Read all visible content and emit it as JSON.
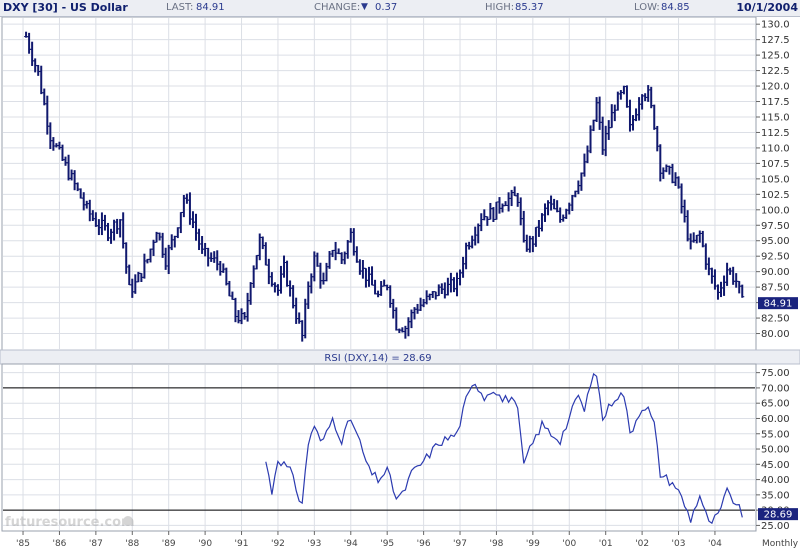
{
  "header": {
    "title": "DXY [30] - US Dollar",
    "last_label": "LAST:",
    "last_value": "84.91",
    "change_label": "CHANGE:",
    "change_value": "0.37",
    "high_label": "HIGH:",
    "high_value": "85.37",
    "low_label": "LOW:",
    "low_value": "84.85",
    "date": "10/1/2004"
  },
  "colors": {
    "price": "#10186e",
    "rsi": "#2c3bb0",
    "grid": "#dcdfe6",
    "badge": "#1a237e",
    "reference_line": "#000000"
  },
  "watermark": "futuresource.com",
  "frequency_label": "Monthly",
  "chart_data": [
    {
      "type": "ohlc",
      "series": [
        {
          "name": "DXY [30] - US Dollar",
          "last": 84.91
        }
      ],
      "ylim": [
        77.5,
        131
      ],
      "yticks": [
        80.0,
        82.5,
        85.0,
        87.5,
        90.0,
        92.5,
        95.0,
        97.5,
        100.0,
        102.5,
        105.0,
        107.5,
        110.0,
        112.5,
        115.0,
        117.5,
        120.0,
        122.5,
        125.0,
        127.5,
        130.0
      ],
      "ytick_labels": [
        "80.00",
        "82.50",
        "85.00",
        "87.50",
        "90.00",
        "92.50",
        "95.00",
        "97.50",
        "100.0",
        "102.5",
        "105.0",
        "107.5",
        "110.0",
        "112.5",
        "115.0",
        "117.5",
        "120.0",
        "122.5",
        "125.0",
        "127.5",
        "130.0"
      ],
      "last_value_label": "84.91",
      "close_anchors": [
        [
          "1985-02-01",
          128.0
        ],
        [
          "1985-06-01",
          122.0
        ],
        [
          "1985-10-01",
          112.0
        ],
        [
          "1986-02-01",
          108.0
        ],
        [
          "1986-06-01",
          104.0
        ],
        [
          "1986-10-01",
          100.0
        ],
        [
          "1987-01-01",
          98.0
        ],
        [
          "1987-05-01",
          96.5
        ],
        [
          "1987-09-01",
          98.5
        ],
        [
          "1987-12-01",
          87.0
        ],
        [
          "1988-02-01",
          88.0
        ],
        [
          "1988-06-01",
          92.0
        ],
        [
          "1988-09-01",
          97.0
        ],
        [
          "1988-12-01",
          92.0
        ],
        [
          "1989-03-01",
          96.0
        ],
        [
          "1989-06-01",
          102.0
        ],
        [
          "1989-09-01",
          98.0
        ],
        [
          "1989-12-01",
          93.0
        ],
        [
          "1990-03-01",
          92.0
        ],
        [
          "1990-06-01",
          91.0
        ],
        [
          "1990-09-01",
          86.0
        ],
        [
          "1990-11-01",
          83.0
        ],
        [
          "1991-02-01",
          82.0
        ],
        [
          "1991-04-01",
          89.0
        ],
        [
          "1991-07-01",
          95.0
        ],
        [
          "1991-10-01",
          90.0
        ],
        [
          "1992-01-01",
          87.0
        ],
        [
          "1992-03-01",
          90.5
        ],
        [
          "1992-06-01",
          85.0
        ],
        [
          "1992-09-01",
          79.5
        ],
        [
          "1992-11-01",
          88.0
        ],
        [
          "1993-01-01",
          92.0
        ],
        [
          "1993-04-01",
          88.0
        ],
        [
          "1993-07-01",
          94.0
        ],
        [
          "1993-10-01",
          92.0
        ],
        [
          "1994-01-01",
          96.0
        ],
        [
          "1994-04-01",
          91.0
        ],
        [
          "1994-07-01",
          88.5
        ],
        [
          "1994-10-01",
          86.0
        ],
        [
          "1995-01-01",
          88.0
        ],
        [
          "1995-04-01",
          81.5
        ],
        [
          "1995-07-01",
          81.0
        ],
        [
          "1995-10-01",
          84.0
        ],
        [
          "1996-01-01",
          85.0
        ],
        [
          "1996-06-01",
          87.0
        ],
        [
          "1996-12-01",
          88.0
        ],
        [
          "1997-03-01",
          94.0
        ],
        [
          "1997-08-01",
          99.0
        ],
        [
          "1997-12-01",
          99.5
        ],
        [
          "1998-03-01",
          101.5
        ],
        [
          "1998-08-01",
          102.0
        ],
        [
          "1998-10-01",
          94.0
        ],
        [
          "1999-01-01",
          95.0
        ],
        [
          "1999-06-01",
          101.0
        ],
        [
          "1999-10-01",
          98.5
        ],
        [
          "2000-01-01",
          101.5
        ],
        [
          "2000-06-01",
          107.0
        ],
        [
          "2000-10-01",
          117.0
        ],
        [
          "2000-12-01",
          110.0
        ],
        [
          "2001-04-01",
          117.0
        ],
        [
          "2001-07-01",
          119.0
        ],
        [
          "2001-09-01",
          113.0
        ],
        [
          "2002-01-01",
          119.5
        ],
        [
          "2002-03-01",
          118.5
        ],
        [
          "2002-05-01",
          114.0
        ],
        [
          "2002-07-01",
          107.0
        ],
        [
          "2002-12-01",
          105.0
        ],
        [
          "2003-02-01",
          100.5
        ],
        [
          "2003-05-01",
          94.0
        ],
        [
          "2003-08-01",
          96.0
        ],
        [
          "2003-11-01",
          90.0
        ],
        [
          "2004-02-01",
          86.5
        ],
        [
          "2004-05-01",
          90.5
        ],
        [
          "2004-08-01",
          88.5
        ],
        [
          "2004-10-01",
          84.91
        ]
      ]
    },
    {
      "type": "line",
      "title": "RSI (DXY,14) = 28.69",
      "series": [
        {
          "name": "RSI (DXY,14)",
          "last": 28.69
        }
      ],
      "ylim": [
        23.5,
        77.5
      ],
      "yticks": [
        25.0,
        30.0,
        35.0,
        40.0,
        45.0,
        50.0,
        55.0,
        60.0,
        65.0,
        70.0,
        75.0
      ],
      "ytick_labels": [
        "25.00",
        "30.00",
        "35.00",
        "40.00",
        "45.00",
        "50.00",
        "55.00",
        "60.00",
        "65.00",
        "70.00",
        "75.00"
      ],
      "reference_lines": [
        70,
        30
      ],
      "last_value_label": "28.69",
      "anchors": [
        [
          "1991-09-01",
          46.0
        ],
        [
          "1991-11-01",
          36.0
        ],
        [
          "1992-01-01",
          47.0
        ],
        [
          "1992-05-01",
          43.0
        ],
        [
          "1992-08-01",
          34.0
        ],
        [
          "1992-09-01",
          32.5
        ],
        [
          "1992-11-01",
          52.0
        ],
        [
          "1993-01-01",
          58.0
        ],
        [
          "1993-03-01",
          52.0
        ],
        [
          "1993-05-01",
          55.0
        ],
        [
          "1993-07-01",
          60.0
        ],
        [
          "1993-10-01",
          53.0
        ],
        [
          "1994-01-01",
          60.0
        ],
        [
          "1994-04-01",
          52.0
        ],
        [
          "1994-07-01",
          43.0
        ],
        [
          "1994-10-01",
          40.0
        ],
        [
          "1995-01-01",
          43.0
        ],
        [
          "1995-04-01",
          34.0
        ],
        [
          "1995-06-01",
          35.0
        ],
        [
          "1995-09-01",
          42.0
        ],
        [
          "1996-01-01",
          46.0
        ],
        [
          "1996-06-01",
          52.0
        ],
        [
          "1996-12-01",
          55.0
        ],
        [
          "1997-03-01",
          66.0
        ],
        [
          "1997-06-01",
          72.0
        ],
        [
          "1997-09-01",
          67.0
        ],
        [
          "1997-12-01",
          70.0
        ],
        [
          "1998-03-01",
          66.0
        ],
        [
          "1998-06-01",
          67.0
        ],
        [
          "1998-08-01",
          62.0
        ],
        [
          "1998-10-01",
          45.0
        ],
        [
          "1999-01-01",
          52.0
        ],
        [
          "1999-04-01",
          58.0
        ],
        [
          "1999-07-01",
          55.0
        ],
        [
          "1999-10-01",
          53.0
        ],
        [
          "2000-01-01",
          60.0
        ],
        [
          "2000-04-01",
          68.0
        ],
        [
          "2000-06-01",
          62.0
        ],
        [
          "2000-08-01",
          72.0
        ],
        [
          "2000-10-01",
          74.5
        ],
        [
          "2000-12-01",
          60.0
        ],
        [
          "2001-04-01",
          67.0
        ],
        [
          "2001-07-01",
          68.0
        ],
        [
          "2001-09-01",
          55.0
        ],
        [
          "2002-01-01",
          64.0
        ],
        [
          "2002-03-01",
          63.0
        ],
        [
          "2002-05-01",
          58.0
        ],
        [
          "2002-07-01",
          42.0
        ],
        [
          "2002-12-01",
          38.0
        ],
        [
          "2003-02-01",
          34.0
        ],
        [
          "2003-05-01",
          27.0
        ],
        [
          "2003-08-01",
          35.0
        ],
        [
          "2003-11-01",
          25.5
        ],
        [
          "2004-02-01",
          28.0
        ],
        [
          "2004-05-01",
          36.0
        ],
        [
          "2004-08-01",
          32.0
        ],
        [
          "2004-10-01",
          28.69
        ]
      ]
    }
  ],
  "x_axis": {
    "ticks": [
      "'85",
      "'86",
      "'87",
      "'88",
      "'89",
      "'90",
      "'91",
      "'92",
      "'93",
      "'94",
      "'95",
      "'96",
      "'97",
      "'98",
      "'99",
      "'00",
      "'01",
      "'02",
      "'03",
      "'04"
    ],
    "tick_dates": [
      "1985-01-01",
      "1986-01-01",
      "1987-01-01",
      "1988-01-01",
      "1989-01-01",
      "1990-01-01",
      "1991-01-01",
      "1992-01-01",
      "1993-01-01",
      "1994-01-01",
      "1995-01-01",
      "1996-01-01",
      "1997-01-01",
      "1998-01-01",
      "1999-01-01",
      "2000-01-01",
      "2001-01-01",
      "2002-01-01",
      "2003-01-01",
      "2004-01-01"
    ]
  }
}
